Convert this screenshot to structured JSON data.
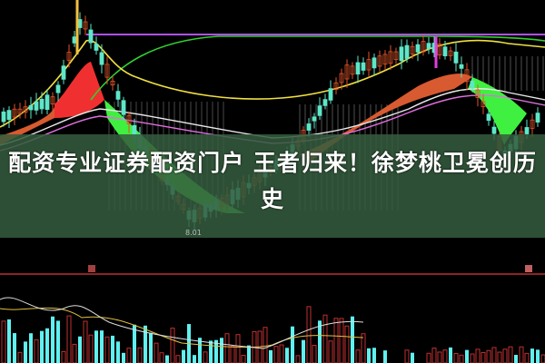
{
  "headline": "配资专业证券配资门户 王者归来！徐梦桃卫冕创历史",
  "chart": {
    "low_price_label": "8.01",
    "colors": {
      "background": "#000000",
      "up_candle": "#e0542a",
      "down_candle": "#5ee6c8",
      "ma_yellow": "#f0e040",
      "ma_green": "#30d030",
      "ma_purple": "#b050f0",
      "band_red": "#f03030",
      "band_green": "#40f040",
      "overlay": "#345c3e",
      "volume_up": "#c03030",
      "volume_down": "#60f0f0"
    }
  }
}
